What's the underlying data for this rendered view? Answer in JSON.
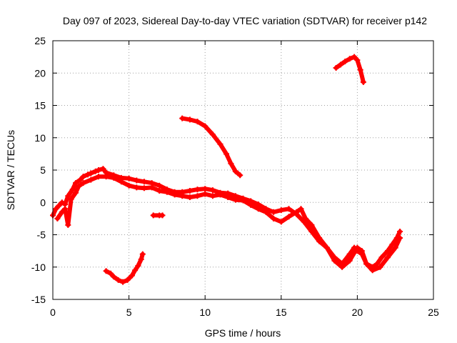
{
  "chart_data": {
    "type": "scatter",
    "title": "Day 097 of 2023, Sidereal Day-to-day VTEC variation (SDTVAR) for receiver p142",
    "xlabel": "GPS time / hours",
    "ylabel": "SDTVAR / TECUs",
    "xlim": [
      0,
      25
    ],
    "ylim": [
      -15,
      25
    ],
    "x_ticks": [
      0,
      5,
      10,
      15,
      20,
      25
    ],
    "y_ticks": [
      -15,
      -10,
      -5,
      0,
      5,
      10,
      15,
      20,
      25
    ],
    "x_tick_labels": [
      "0",
      "5",
      "10",
      "15",
      "20",
      "25"
    ],
    "y_tick_labels": [
      "-15",
      "-10",
      "-5",
      "0",
      "5",
      "10",
      "15",
      "20",
      "25"
    ],
    "grid": true,
    "marker": "plus",
    "color": "#ff0000",
    "series": [
      {
        "name": "main-track-a",
        "points": [
          [
            0.0,
            -2.0
          ],
          [
            0.2,
            -1.0
          ],
          [
            0.4,
            -0.5
          ],
          [
            0.6,
            0.0
          ],
          [
            0.8,
            -0.3
          ],
          [
            1.0,
            1.0
          ],
          [
            1.3,
            2.0
          ],
          [
            1.5,
            3.0
          ],
          [
            1.8,
            3.5
          ],
          [
            2.0,
            4.0
          ],
          [
            2.3,
            4.3
          ],
          [
            2.5,
            4.5
          ],
          [
            2.8,
            4.8
          ],
          [
            3.0,
            5.0
          ],
          [
            3.3,
            5.2
          ],
          [
            3.5,
            4.6
          ],
          [
            4.0,
            4.2
          ],
          [
            4.5,
            3.8
          ],
          [
            5.0,
            3.7
          ],
          [
            5.5,
            3.4
          ],
          [
            6.0,
            3.2
          ],
          [
            6.5,
            3.0
          ],
          [
            7.0,
            2.6
          ],
          [
            7.5,
            2.0
          ],
          [
            8.0,
            1.6
          ],
          [
            8.5,
            1.6
          ],
          [
            9.0,
            1.8
          ],
          [
            9.5,
            2.0
          ],
          [
            10.0,
            2.1
          ],
          [
            10.5,
            1.9
          ],
          [
            11.0,
            1.5
          ],
          [
            11.5,
            1.4
          ],
          [
            12.0,
            1.0
          ],
          [
            12.5,
            0.6
          ],
          [
            13.0,
            0.2
          ],
          [
            13.5,
            -0.3
          ],
          [
            14.0,
            -1.0
          ],
          [
            14.5,
            -1.5
          ],
          [
            15.0,
            -1.2
          ],
          [
            15.5,
            -1.0
          ],
          [
            16.0,
            -1.8
          ],
          [
            16.5,
            -3.0
          ],
          [
            17.0,
            -4.5
          ],
          [
            17.5,
            -6.0
          ],
          [
            18.0,
            -7.0
          ],
          [
            18.5,
            -8.5
          ],
          [
            19.0,
            -9.5
          ],
          [
            19.5,
            -8.0
          ],
          [
            19.8,
            -7.0
          ],
          [
            20.0,
            -7.5
          ],
          [
            20.3,
            -8.0
          ],
          [
            20.6,
            -9.5
          ],
          [
            21.0,
            -10.0
          ],
          [
            21.3,
            -9.5
          ],
          [
            21.6,
            -8.5
          ],
          [
            22.0,
            -7.5
          ],
          [
            22.3,
            -6.5
          ],
          [
            22.6,
            -5.5
          ],
          [
            22.8,
            -4.5
          ]
        ]
      },
      {
        "name": "main-track-b",
        "points": [
          [
            0.3,
            -2.5
          ],
          [
            0.6,
            -1.5
          ],
          [
            0.8,
            -1.0
          ],
          [
            1.0,
            -3.5
          ],
          [
            1.2,
            0.5
          ],
          [
            1.5,
            1.5
          ],
          [
            1.7,
            2.5
          ],
          [
            2.0,
            3.0
          ],
          [
            2.5,
            3.5
          ],
          [
            3.0,
            4.0
          ],
          [
            3.5,
            4.0
          ],
          [
            4.0,
            3.8
          ],
          [
            4.5,
            3.2
          ],
          [
            5.0,
            2.6
          ],
          [
            5.5,
            2.3
          ],
          [
            6.0,
            2.2
          ],
          [
            6.5,
            2.3
          ],
          [
            7.0,
            1.8
          ],
          [
            7.5,
            1.6
          ],
          [
            8.0,
            1.2
          ],
          [
            8.5,
            1.0
          ],
          [
            9.0,
            0.8
          ],
          [
            9.5,
            1.0
          ],
          [
            10.0,
            1.3
          ],
          [
            10.5,
            1.0
          ],
          [
            11.0,
            1.2
          ],
          [
            11.5,
            0.8
          ],
          [
            12.0,
            0.4
          ],
          [
            12.5,
            0.3
          ],
          [
            13.0,
            -0.4
          ],
          [
            13.5,
            -1.0
          ],
          [
            14.0,
            -1.5
          ],
          [
            14.5,
            -2.5
          ],
          [
            15.0,
            -3.0
          ],
          [
            15.5,
            -2.2
          ],
          [
            16.0,
            -1.5
          ],
          [
            16.3,
            -1.0
          ],
          [
            16.6,
            -2.5
          ],
          [
            17.0,
            -3.5
          ],
          [
            17.5,
            -5.5
          ],
          [
            18.0,
            -7.0
          ],
          [
            18.5,
            -9.0
          ],
          [
            19.0,
            -10.0
          ],
          [
            19.5,
            -9.0
          ],
          [
            20.0,
            -7.0
          ],
          [
            20.3,
            -7.5
          ],
          [
            20.6,
            -9.5
          ],
          [
            21.0,
            -10.5
          ],
          [
            21.5,
            -10.0
          ],
          [
            22.0,
            -8.5
          ],
          [
            22.5,
            -7.0
          ],
          [
            22.8,
            -5.5
          ]
        ]
      },
      {
        "name": "segment-morning-low",
        "points": [
          [
            3.5,
            -10.6
          ],
          [
            3.8,
            -11.0
          ],
          [
            4.0,
            -11.5
          ],
          [
            4.3,
            -12.0
          ],
          [
            4.6,
            -12.3
          ],
          [
            4.9,
            -12.0
          ],
          [
            5.2,
            -11.3
          ],
          [
            5.4,
            -10.5
          ],
          [
            5.6,
            -9.8
          ],
          [
            5.8,
            -8.8
          ],
          [
            5.9,
            -8.0
          ]
        ]
      },
      {
        "name": "segment-short",
        "points": [
          [
            6.6,
            -2.0
          ],
          [
            7.0,
            -2.0
          ],
          [
            7.2,
            -2.0
          ]
        ]
      },
      {
        "name": "segment-midday-high",
        "points": [
          [
            8.5,
            13.0
          ],
          [
            9.0,
            12.8
          ],
          [
            9.5,
            12.5
          ],
          [
            10.0,
            11.8
          ],
          [
            10.5,
            10.5
          ],
          [
            11.0,
            9.0
          ],
          [
            11.4,
            7.5
          ],
          [
            11.7,
            6.0
          ],
          [
            12.0,
            4.8
          ],
          [
            12.3,
            4.2
          ]
        ]
      },
      {
        "name": "segment-evening-high",
        "points": [
          [
            18.6,
            20.8
          ],
          [
            18.9,
            21.3
          ],
          [
            19.2,
            21.8
          ],
          [
            19.5,
            22.2
          ],
          [
            19.8,
            22.5
          ],
          [
            20.0,
            22.0
          ],
          [
            20.2,
            20.5
          ],
          [
            20.4,
            18.6
          ]
        ]
      }
    ]
  }
}
